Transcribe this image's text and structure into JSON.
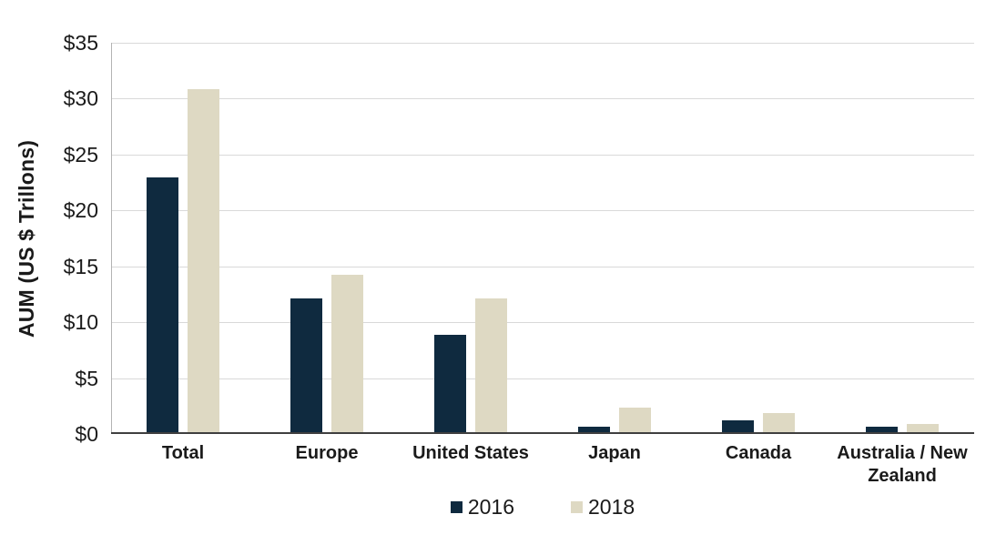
{
  "chart_data": {
    "type": "bar",
    "categories": [
      "Total",
      "Europe",
      "United States",
      "Japan",
      "Canada",
      "Australia / New Zealand"
    ],
    "series": [
      {
        "name": "2016",
        "color": "#0f2a3f",
        "values": [
          22.8,
          12.0,
          8.7,
          0.5,
          1.1,
          0.5
        ]
      },
      {
        "name": "2018",
        "color": "#ded9c3",
        "values": [
          30.7,
          14.1,
          12.0,
          2.2,
          1.7,
          0.7
        ]
      }
    ],
    "ylabel": "AUM (US $ Trillons)",
    "xlabel": "",
    "ylim": [
      0,
      35
    ],
    "yticks": [
      0,
      5,
      10,
      15,
      20,
      25,
      30,
      35
    ],
    "ytick_labels": [
      "$0",
      "$5",
      "$10",
      "$15",
      "$20",
      "$25",
      "$30",
      "$35"
    ],
    "grid": true,
    "legend_position": "bottom"
  }
}
